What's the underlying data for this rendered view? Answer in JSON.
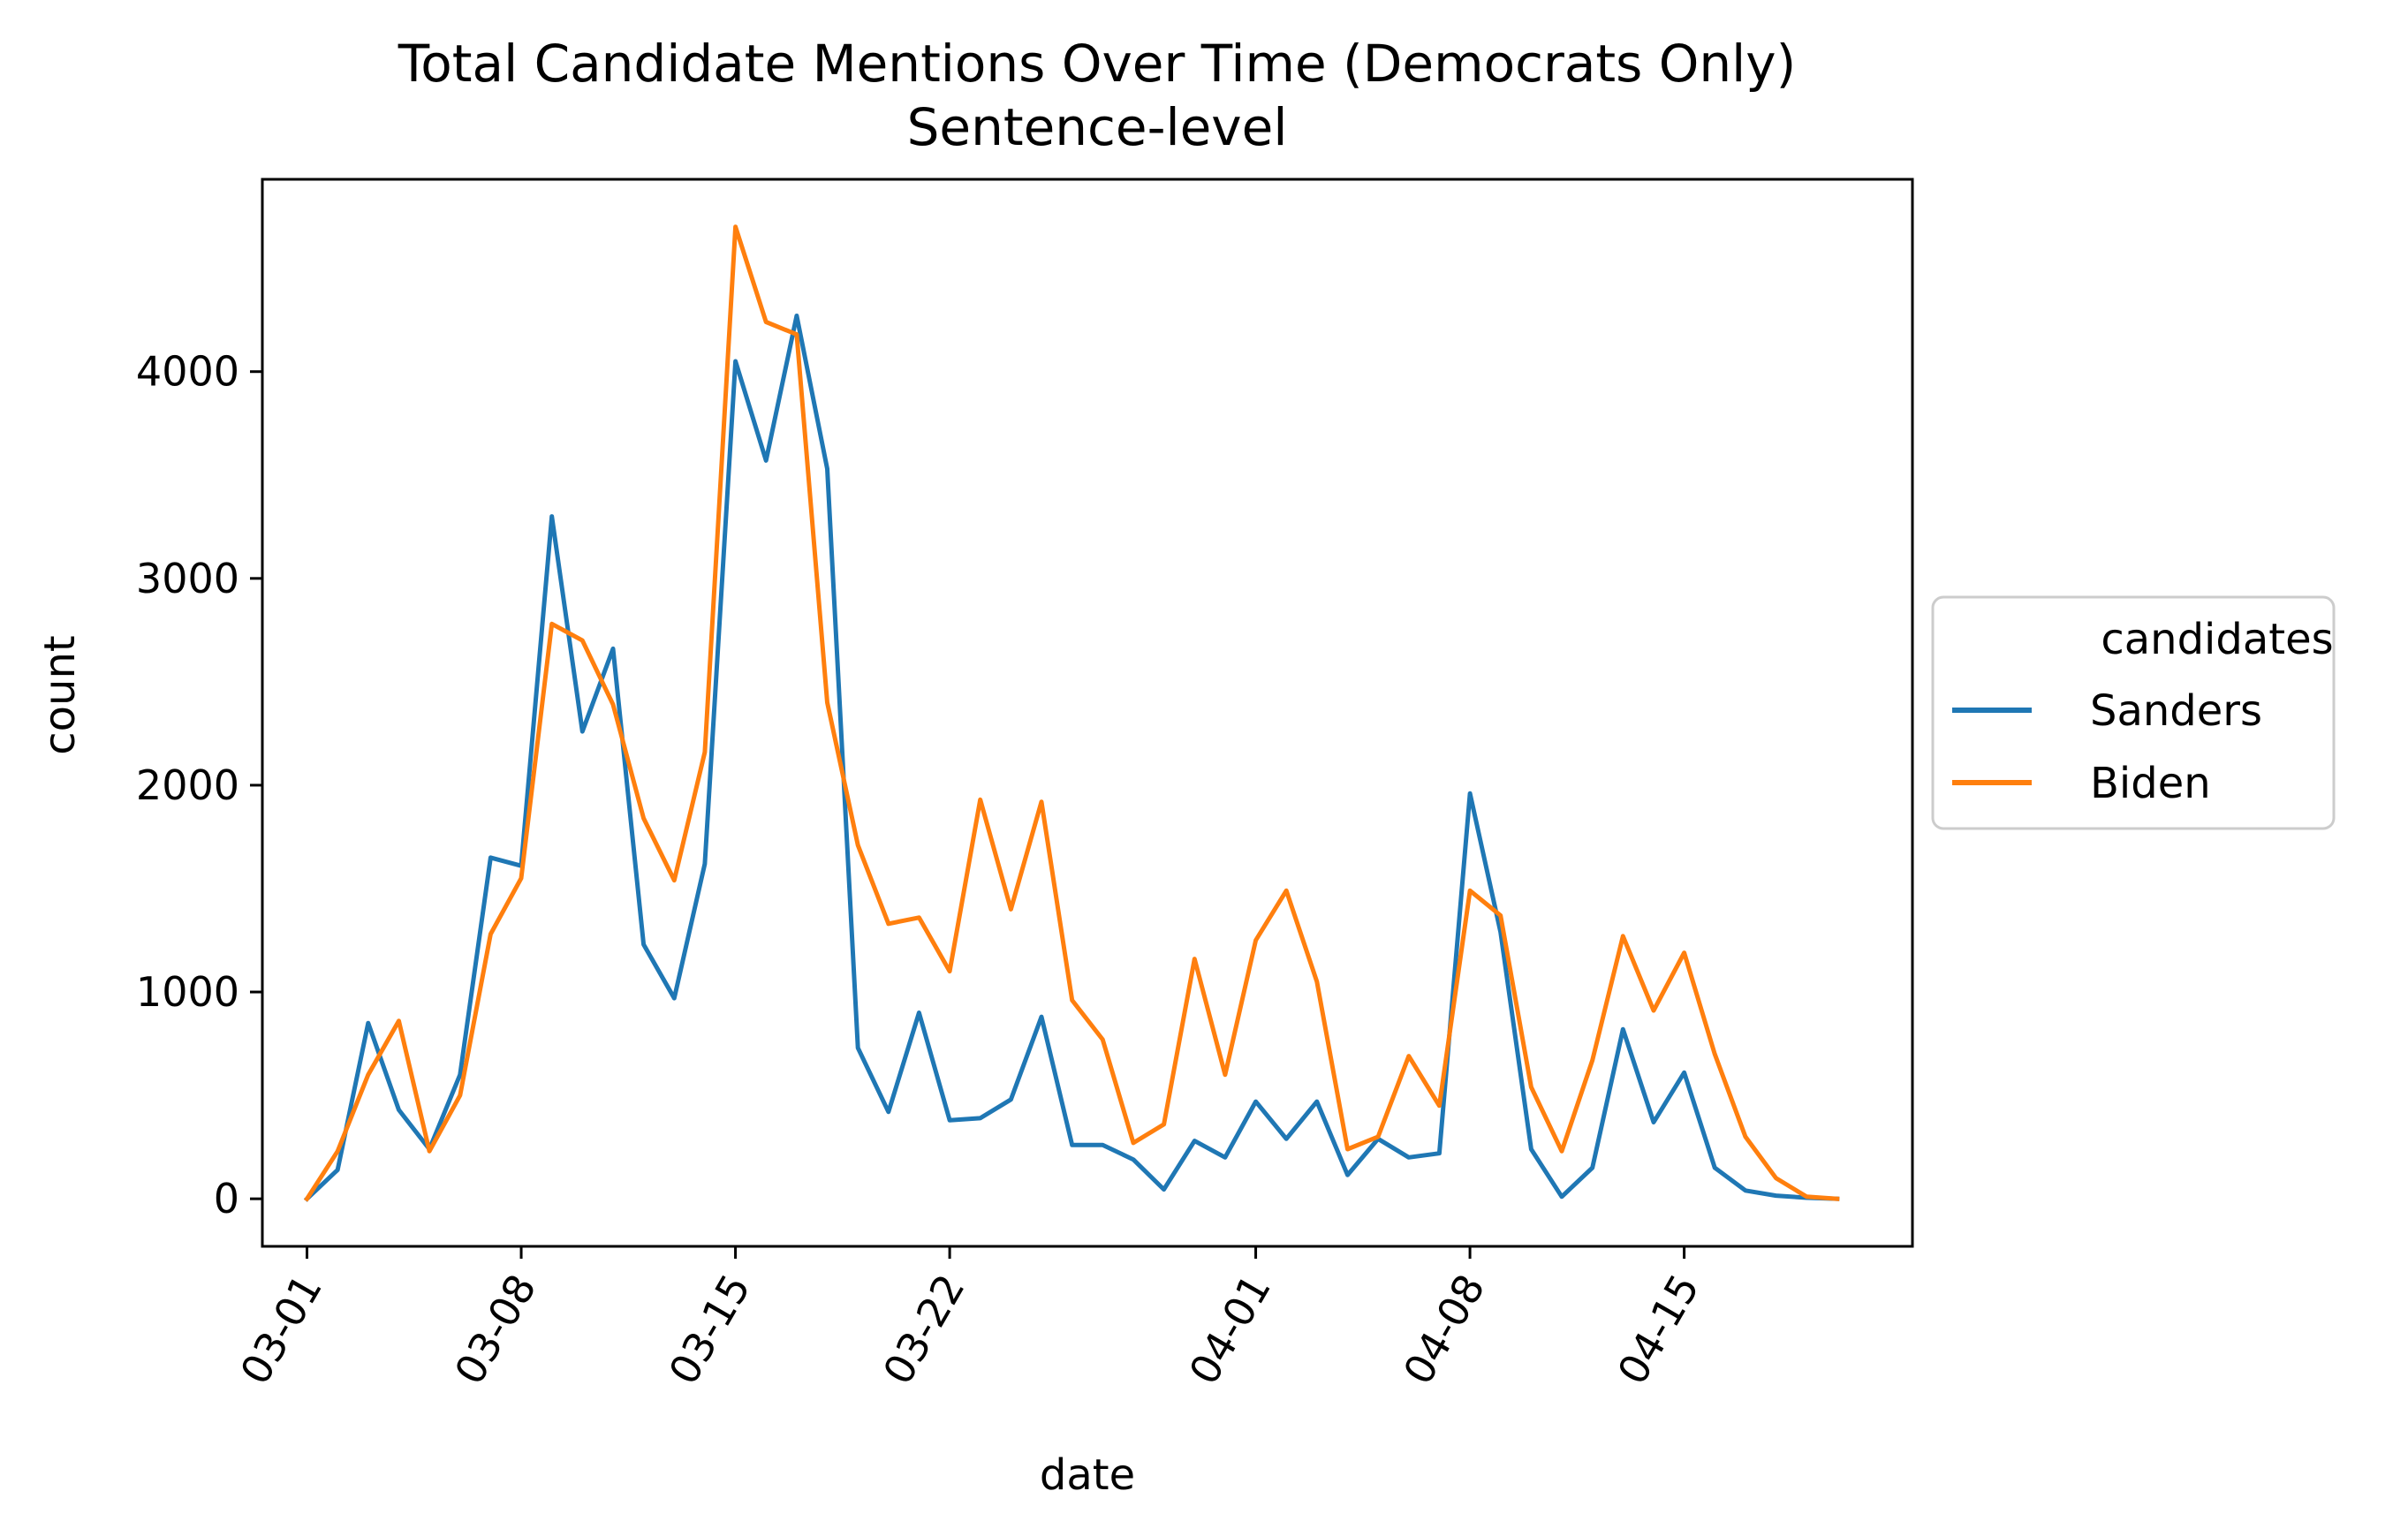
{
  "chart_data": {
    "type": "line",
    "title": "Total Candidate Mentions Over Time (Democrats Only)",
    "subtitle": "Sentence-level",
    "xlabel": "date",
    "ylabel": "count",
    "x_ticks": [
      "03-01",
      "03-08",
      "03-15",
      "03-22",
      "04-01",
      "04-08",
      "04-15"
    ],
    "y_ticks": [
      0,
      1000,
      2000,
      3000,
      4000
    ],
    "xlim": [
      "2020-02-28 13:00",
      "2020-04-22 11:00"
    ],
    "ylim": [
      -230,
      4930
    ],
    "grid": false,
    "legend": {
      "title": "candidates",
      "placement": "right, outside plot area"
    },
    "dates": [
      "2020-03-01",
      "2020-03-02",
      "2020-03-03",
      "2020-03-04",
      "2020-03-05",
      "2020-03-06",
      "2020-03-07",
      "2020-03-08",
      "2020-03-09",
      "2020-03-10",
      "2020-03-11",
      "2020-03-12",
      "2020-03-13",
      "2020-03-14",
      "2020-03-15",
      "2020-03-16",
      "2020-03-17",
      "2020-03-18",
      "2020-03-19",
      "2020-03-20",
      "2020-03-21",
      "2020-03-22",
      "2020-03-23",
      "2020-03-24",
      "2020-03-25",
      "2020-03-26",
      "2020-03-27",
      "2020-03-28",
      "2020-03-29",
      "2020-03-30",
      "2020-03-31",
      "2020-04-01",
      "2020-04-02",
      "2020-04-03",
      "2020-04-04",
      "2020-04-05",
      "2020-04-06",
      "2020-04-07",
      "2020-04-08",
      "2020-04-09",
      "2020-04-10",
      "2020-04-11",
      "2020-04-12",
      "2020-04-13",
      "2020-04-14",
      "2020-04-15",
      "2020-04-16",
      "2020-04-17",
      "2020-04-18",
      "2020-04-19",
      "2020-04-20"
    ],
    "series": [
      {
        "name": "Sanders",
        "color": "#1f77b4",
        "values": [
          0,
          140,
          850,
          430,
          240,
          600,
          1650,
          1610,
          3300,
          2260,
          2660,
          1230,
          970,
          1620,
          4050,
          3570,
          4270,
          3530,
          730,
          420,
          900,
          380,
          390,
          480,
          880,
          260,
          260,
          190,
          45,
          280,
          200,
          470,
          290,
          470,
          115,
          290,
          200,
          220,
          1960,
          1290,
          240,
          10,
          150,
          820,
          370,
          610,
          150,
          40,
          15,
          5,
          0
        ]
      },
      {
        "name": "Biden",
        "color": "#ff7f0e",
        "values": [
          0,
          230,
          600,
          860,
          230,
          500,
          1280,
          1550,
          2780,
          2700,
          2390,
          1840,
          1540,
          2160,
          4700,
          4240,
          4180,
          2400,
          1710,
          1330,
          1360,
          1100,
          1930,
          1400,
          1920,
          960,
          770,
          270,
          360,
          1160,
          600,
          1250,
          1490,
          1050,
          240,
          300,
          690,
          450,
          1490,
          1370,
          540,
          230,
          670,
          1270,
          910,
          1190,
          700,
          300,
          100,
          10,
          0
        ]
      }
    ]
  }
}
